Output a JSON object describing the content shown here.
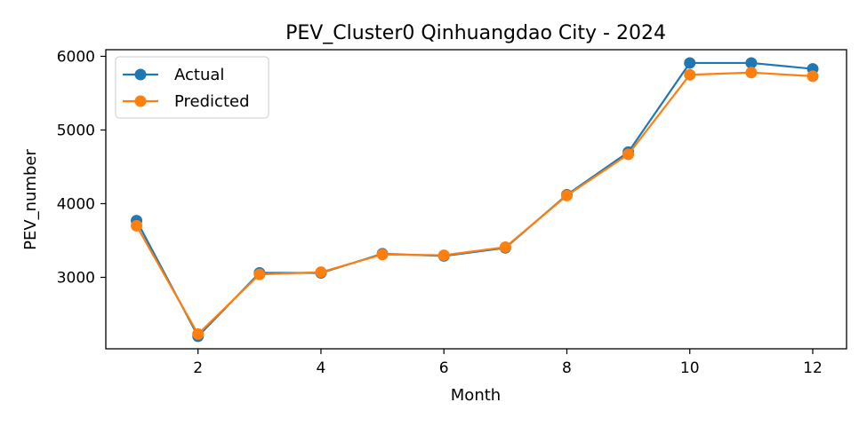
{
  "chart_data": {
    "type": "line",
    "title": "PEV_Cluster0 Qinhuangdao City - 2024",
    "xlabel": "Month",
    "ylabel": "PEV_number",
    "x": [
      1,
      2,
      3,
      4,
      5,
      6,
      7,
      8,
      9,
      10,
      11,
      12
    ],
    "xticks": [
      2,
      4,
      6,
      8,
      10,
      12
    ],
    "yticks": [
      3000,
      4000,
      5000,
      6000
    ],
    "xlim": [
      0.5,
      12.55
    ],
    "ylim": [
      2030,
      6090
    ],
    "grid": false,
    "legend_position": "upper-left",
    "series": [
      {
        "name": "Actual",
        "color": "#1f77b4",
        "values": [
          3770,
          2200,
          3060,
          3060,
          3320,
          3290,
          3400,
          4120,
          4700,
          5910,
          5910,
          5830
        ]
      },
      {
        "name": "Predicted",
        "color": "#ff7f0e",
        "values": [
          3700,
          2230,
          3040,
          3070,
          3310,
          3300,
          3410,
          4110,
          4670,
          5750,
          5780,
          5730
        ]
      }
    ]
  }
}
